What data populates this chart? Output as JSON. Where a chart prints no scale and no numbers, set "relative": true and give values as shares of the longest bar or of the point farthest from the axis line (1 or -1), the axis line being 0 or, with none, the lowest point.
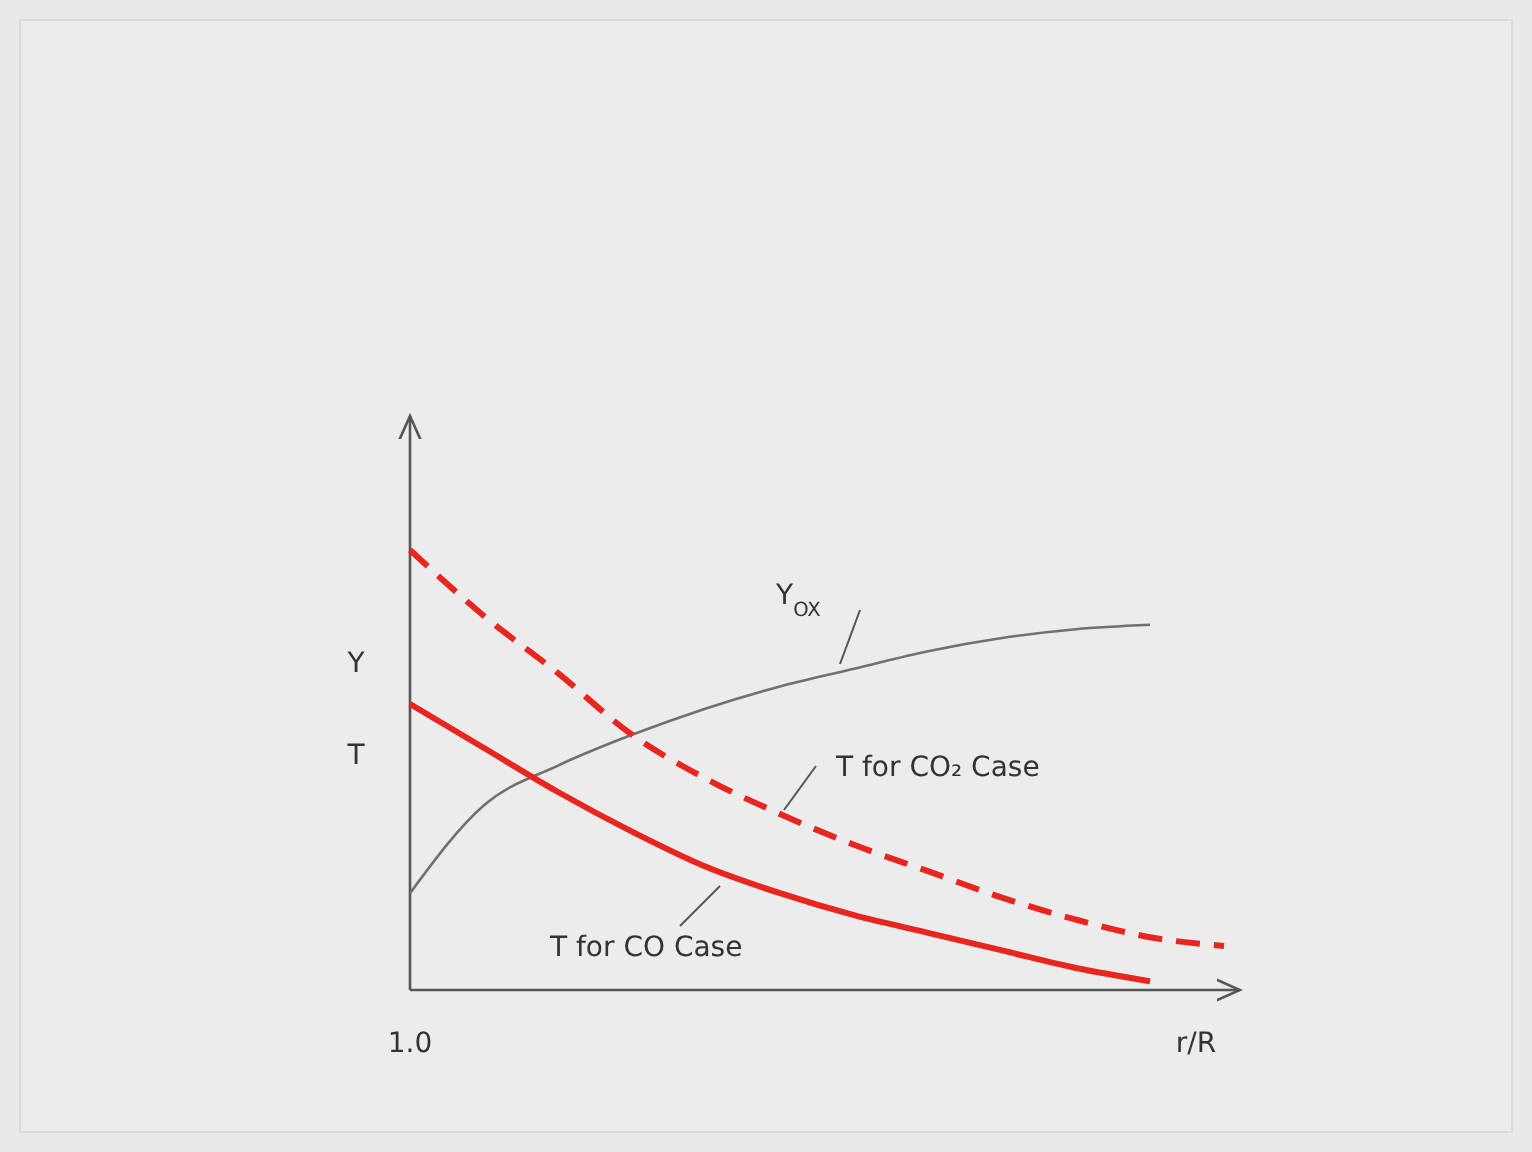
{
  "chart_data": {
    "type": "line",
    "relative": true,
    "xlabel": "r/R",
    "ylabel": "Y T",
    "annotations": [
      "1.0"
    ],
    "categories": [
      null,
      null,
      null,
      null,
      null,
      null,
      null,
      null,
      null,
      null,
      null,
      null
    ],
    "series": [
      {
        "name": "Y$_{OX}$",
        "color": "#707070",
        "line_style": "solid",
        "values": [
          0.22,
          0.42,
          0.51,
          0.58,
          0.64,
          0.69,
          0.73,
          0.77,
          0.8,
          0.82,
          0.83,
          null
        ]
      },
      {
        "name": "T for CO₂ Case",
        "color": "#e8251f",
        "line_style": "dashed",
        "values": [
          1.0,
          0.85,
          0.72,
          0.58,
          0.48,
          0.4,
          0.33,
          0.27,
          0.21,
          0.16,
          0.12,
          0.1
        ]
      },
      {
        "name": "T for CO Case",
        "color": "#e8251f",
        "line_style": "solid",
        "values": [
          0.65,
          0.55,
          0.45,
          0.36,
          0.28,
          0.22,
          0.17,
          0.13,
          0.09,
          0.05,
          0.02,
          null
        ]
      }
    ]
  }
}
